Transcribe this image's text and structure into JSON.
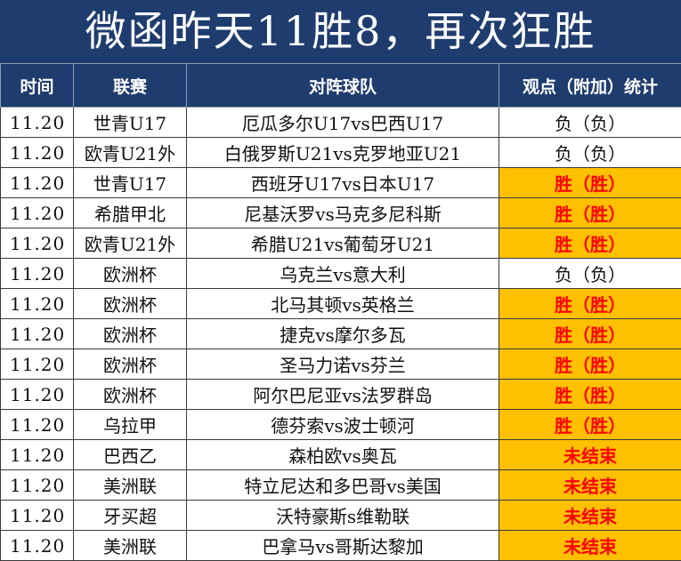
{
  "title": "微函昨天11胜8，再次狂胜",
  "colors": {
    "header_bg": "#1f3c6e",
    "highlight_bg": "#ffc000",
    "highlight_text": "#ff0000"
  },
  "headers": {
    "date": "时间",
    "league": "联赛",
    "match": "对阵球队",
    "result": "观点（附加）统计"
  },
  "rows": [
    {
      "date": "11.20",
      "league": "世青U17",
      "match": "厄瓜多尔U17vs巴西U17",
      "result": "负（负）",
      "status": "lose"
    },
    {
      "date": "11.20",
      "league": "欧青U21外",
      "match": "白俄罗斯U21vs克罗地亚U21",
      "result": "负（负）",
      "status": "lose"
    },
    {
      "date": "11.20",
      "league": "世青U17",
      "match": "西班牙U17vs日本U17",
      "result": "胜（胜）",
      "status": "win"
    },
    {
      "date": "11.20",
      "league": "希腊甲北",
      "match": "尼基沃罗vs马克多尼科斯",
      "result": "胜（胜）",
      "status": "win"
    },
    {
      "date": "11.20",
      "league": "欧青U21外",
      "match": "希腊U21vs葡萄牙U21",
      "result": "胜（胜）",
      "status": "win"
    },
    {
      "date": "11.20",
      "league": "欧洲杯",
      "match": "乌克兰vs意大利",
      "result": "负（负）",
      "status": "lose"
    },
    {
      "date": "11.20",
      "league": "欧洲杯",
      "match": "北马其顿vs英格兰",
      "result": "胜（胜）",
      "status": "win"
    },
    {
      "date": "11.20",
      "league": "欧洲杯",
      "match": "捷克vs摩尔多瓦",
      "result": "胜（胜）",
      "status": "win"
    },
    {
      "date": "11.20",
      "league": "欧洲杯",
      "match": "圣马力诺vs芬兰",
      "result": "胜（胜）",
      "status": "win"
    },
    {
      "date": "11.20",
      "league": "欧洲杯",
      "match": "阿尔巴尼亚vs法罗群岛",
      "result": "胜（胜）",
      "status": "win"
    },
    {
      "date": "11.20",
      "league": "乌拉甲",
      "match": "德芬索vs波士顿河",
      "result": "胜（胜）",
      "status": "win"
    },
    {
      "date": "11.20",
      "league": "巴西乙",
      "match": "森柏欧vs奥瓦",
      "result": "未结束",
      "status": "pending"
    },
    {
      "date": "11.20",
      "league": "美洲联",
      "match": "特立尼达和多巴哥vs美国",
      "result": "未结束",
      "status": "pending"
    },
    {
      "date": "11.20",
      "league": "牙买超",
      "match": "沃特豪斯s维勒联",
      "result": "未结束",
      "status": "pending"
    },
    {
      "date": "11.20",
      "league": "美洲联",
      "match": "巴拿马vs哥斯达黎加",
      "result": "未结束",
      "status": "pending"
    }
  ]
}
